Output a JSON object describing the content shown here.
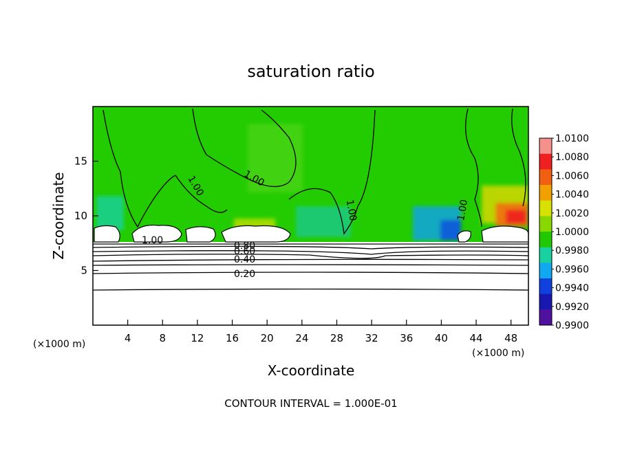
{
  "chart_data": {
    "type": "heatmap",
    "title": "saturation ratio",
    "xlabel": "X-coordinate",
    "ylabel": "Z-coordinate",
    "x_unit": "(×1000 m)",
    "z_unit": "(×1000 m)",
    "xlim": [
      0,
      50
    ],
    "ylim": [
      0,
      20
    ],
    "x_ticks": [
      4,
      8,
      12,
      16,
      20,
      24,
      28,
      32,
      36,
      40,
      44,
      48
    ],
    "y_ticks": [
      5,
      10,
      15
    ],
    "colorbar": {
      "labels": [
        "1.0100",
        "1.0080",
        "1.0060",
        "1.0040",
        "1.0020",
        "1.0000",
        "0.9980",
        "0.9960",
        "0.9940",
        "0.9920",
        "0.9900"
      ],
      "colors": [
        "#f5908c",
        "#ee2020",
        "#f06010",
        "#f2a000",
        "#d8e000",
        "#88d800",
        "#20c800",
        "#18d0a0",
        "#10a8f0",
        "#1040e0",
        "#1818b0",
        "#5010a0"
      ]
    },
    "contour_labels": [
      "1.00",
      "1.00",
      "1.00",
      "1.00",
      "1.00",
      "0.80",
      "0.60",
      "0.40",
      "0.20"
    ],
    "contour_interval_text": "CONTOUR INTERVAL = 1.000E-01"
  }
}
